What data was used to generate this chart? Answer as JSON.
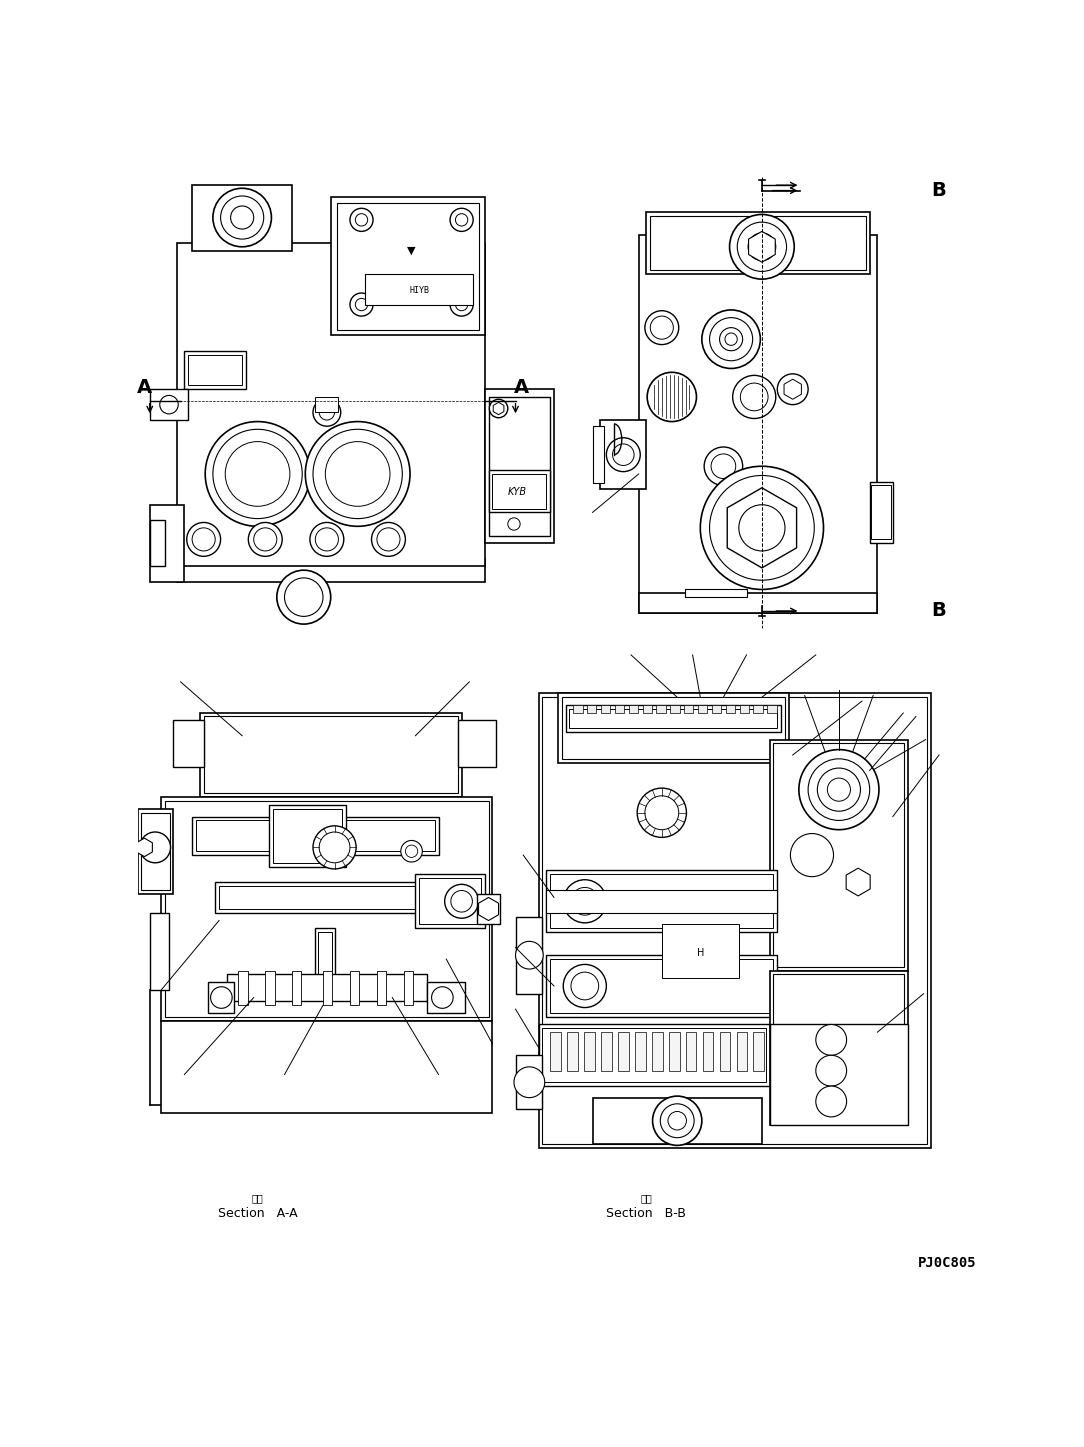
{
  "background_color": "#ffffff",
  "line_color": "#000000",
  "section_AA_label": "Section   A-A",
  "section_BB_label": "Section   B-B",
  "part_number": "PJ0C805",
  "fig_width": 10.84,
  "fig_height": 14.47,
  "dpi": 100,
  "label_A": "A",
  "label_B": "B"
}
